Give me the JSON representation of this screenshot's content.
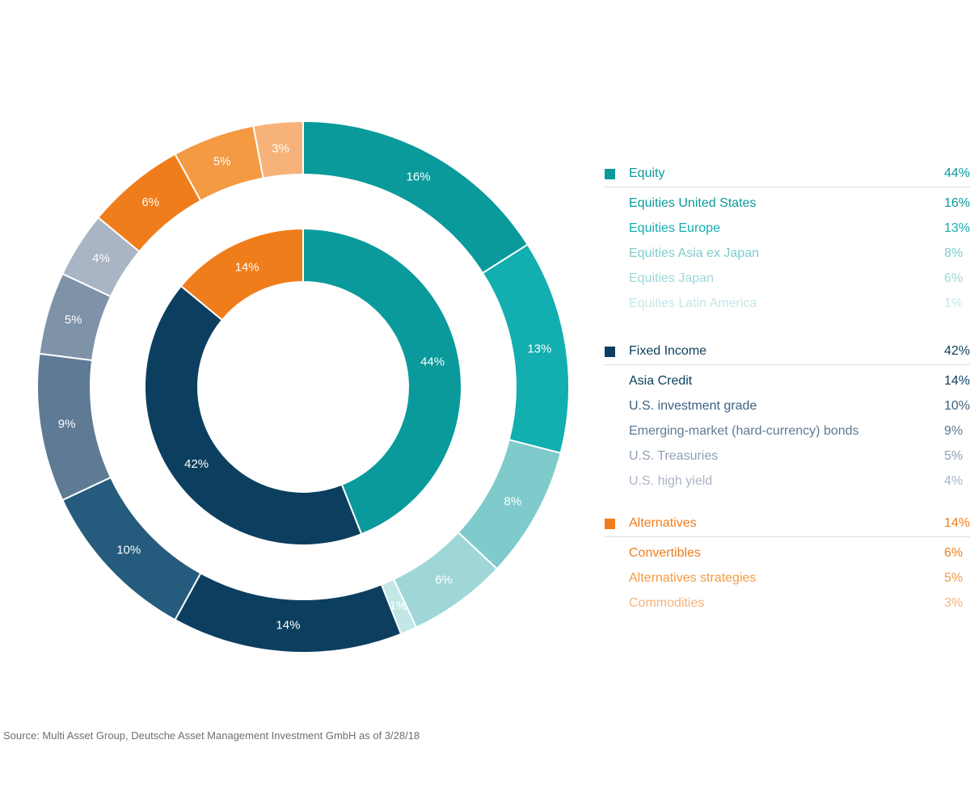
{
  "chart_data": {
    "type": "donut",
    "inner_ring": [
      {
        "name": "Equity",
        "value": 44,
        "label": "44%",
        "color": "#0a9a9b"
      },
      {
        "name": "Fixed Income",
        "value": 42,
        "label": "42%",
        "color": "#0c3f5f"
      },
      {
        "name": "Alternatives",
        "value": 14,
        "label": "14%",
        "color": "#f07d1b"
      }
    ],
    "outer_ring": [
      {
        "name": "Equities United States",
        "value": 16,
        "label": "16%",
        "color": "#0a9a9b"
      },
      {
        "name": "Equities Europe",
        "value": 13,
        "label": "13%",
        "color": "#13aeb0"
      },
      {
        "name": "Equities Asia ex Japan",
        "value": 8,
        "label": "8%",
        "color": "#7fcbcc"
      },
      {
        "name": "Equities Japan",
        "value": 6,
        "label": "6%",
        "color": "#9fd7d8"
      },
      {
        "name": "Equities Latin America",
        "value": 1,
        "label": "1%",
        "color": "#c3e7e7"
      },
      {
        "name": "Asia Credit",
        "value": 14,
        "label": "14%",
        "color": "#0c3f5f"
      },
      {
        "name": "U.S. investment grade",
        "value": 10,
        "label": "10%",
        "color": "#255b7c"
      },
      {
        "name": "Emerging-market (hard-currency) bonds",
        "value": 9,
        "label": "9%",
        "color": "#5f7a95"
      },
      {
        "name": "U.S. Treasuries",
        "value": 5,
        "label": "5%",
        "color": "#7e92a8"
      },
      {
        "name": "U.S. high yield",
        "value": 4,
        "label": "4%",
        "color": "#a9b5c5"
      },
      {
        "name": "Convertibles",
        "value": 6,
        "label": "6%",
        "color": "#f07d1b"
      },
      {
        "name": "Alternatives strategies",
        "value": 5,
        "label": "5%",
        "color": "#f39a43"
      },
      {
        "name": "Commodities",
        "value": 3,
        "label": "3%",
        "color": "#f7b27a"
      }
    ]
  },
  "legend": {
    "equity": {
      "title": "Equity",
      "pct": "44%",
      "color": "#0a9a9b",
      "items": [
        {
          "name": "Equities United States",
          "pct": "16%",
          "color": "#0a9a9b"
        },
        {
          "name": "Equities Europe",
          "pct": "13%",
          "color": "#13aeb0"
        },
        {
          "name": "Equities Asia ex Japan",
          "pct": "8%",
          "color": "#7fcbcc"
        },
        {
          "name": "Equities Japan",
          "pct": "6%",
          "color": "#9fd7d8"
        },
        {
          "name": "Equities Latin America",
          "pct": "1%",
          "color": "#c3e7e7"
        }
      ]
    },
    "fixed_income": {
      "title": "Fixed Income",
      "pct": "42%",
      "color": "#0c3f5f",
      "items": [
        {
          "name": "Asia Credit",
          "pct": "14%",
          "color": "#0c3f5f"
        },
        {
          "name": "U.S. investment grade",
          "pct": "10%",
          "color": "#3f6282"
        },
        {
          "name": "Emerging-market (hard-currency) bonds",
          "pct": "9%",
          "color": "#5f7a95"
        },
        {
          "name": "U.S. Treasuries",
          "pct": "5%",
          "color": "#8f9fb3"
        },
        {
          "name": "U.S. high yield",
          "pct": "4%",
          "color": "#a9b5c5"
        }
      ]
    },
    "alternatives": {
      "title": "Alternatives",
      "pct": "14%",
      "color": "#f07d1b",
      "items": [
        {
          "name": "Convertibles",
          "pct": "6%",
          "color": "#f07d1b"
        },
        {
          "name": "Alternatives strategies",
          "pct": "5%",
          "color": "#f39a43"
        },
        {
          "name": "Commodities",
          "pct": "3%",
          "color": "#f7b27a"
        }
      ]
    }
  },
  "source": "Source: Multi Asset Group, Deutsche Asset Management Investment GmbH as of 3/28/18"
}
